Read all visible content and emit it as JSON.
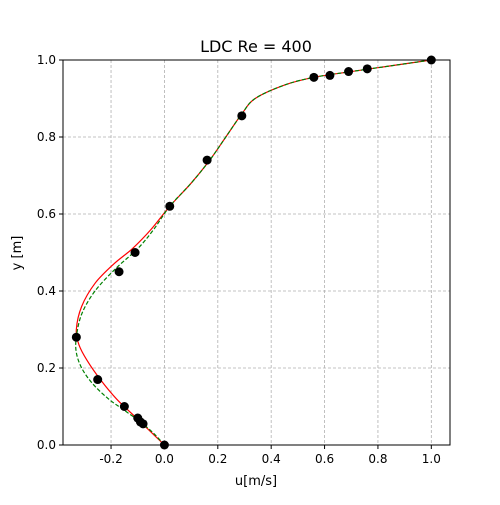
{
  "chart_data": {
    "type": "line",
    "title": "LDC Re = 400",
    "xlabel": "u[m/s]",
    "ylabel": "y [m]",
    "xlim": [
      -0.38,
      1.07
    ],
    "ylim": [
      0.0,
      1.0
    ],
    "grid": true,
    "xticks": [
      -0.2,
      0.0,
      0.2,
      0.4,
      0.6,
      0.8,
      1.0
    ],
    "yticks": [
      0.0,
      0.2,
      0.4,
      0.6,
      0.8,
      1.0
    ],
    "series": [
      {
        "style": "solid",
        "color": "#ff0000",
        "points": [
          [
            0.0,
            0.0
          ],
          [
            -0.06,
            0.04
          ],
          [
            -0.12,
            0.08
          ],
          [
            -0.18,
            0.12
          ],
          [
            -0.24,
            0.17
          ],
          [
            -0.29,
            0.22
          ],
          [
            -0.32,
            0.26
          ],
          [
            -0.33,
            0.3
          ],
          [
            -0.31,
            0.36
          ],
          [
            -0.26,
            0.42
          ],
          [
            -0.19,
            0.47
          ],
          [
            -0.12,
            0.51
          ],
          [
            -0.05,
            0.56
          ],
          [
            0.02,
            0.62
          ],
          [
            0.1,
            0.68
          ],
          [
            0.17,
            0.74
          ],
          [
            0.23,
            0.8
          ],
          [
            0.29,
            0.86
          ],
          [
            0.34,
            0.9
          ],
          [
            0.45,
            0.935
          ],
          [
            0.56,
            0.955
          ],
          [
            0.7,
            0.97
          ],
          [
            0.85,
            0.985
          ],
          [
            1.0,
            1.0
          ]
        ]
      },
      {
        "style": "dashed",
        "color": "#008000",
        "points": [
          [
            0.0,
            0.0
          ],
          [
            -0.04,
            0.03
          ],
          [
            -0.09,
            0.06
          ],
          [
            -0.15,
            0.09
          ],
          [
            -0.21,
            0.12
          ],
          [
            -0.27,
            0.16
          ],
          [
            -0.31,
            0.2
          ],
          [
            -0.33,
            0.24
          ],
          [
            -0.33,
            0.28
          ],
          [
            -0.31,
            0.34
          ],
          [
            -0.26,
            0.4
          ],
          [
            -0.18,
            0.46
          ],
          [
            -0.1,
            0.51
          ],
          [
            -0.04,
            0.56
          ],
          [
            0.02,
            0.62
          ],
          [
            0.1,
            0.68
          ],
          [
            0.17,
            0.74
          ],
          [
            0.23,
            0.8
          ],
          [
            0.29,
            0.86
          ],
          [
            0.34,
            0.9
          ],
          [
            0.45,
            0.935
          ],
          [
            0.56,
            0.955
          ],
          [
            0.7,
            0.97
          ],
          [
            0.85,
            0.985
          ],
          [
            1.0,
            1.0
          ]
        ]
      },
      {
        "style": "markers",
        "color": "#000000",
        "points": [
          [
            0.0,
            0.0
          ],
          [
            -0.08,
            0.055
          ],
          [
            -0.09,
            0.06
          ],
          [
            -0.1,
            0.07
          ],
          [
            -0.15,
            0.1
          ],
          [
            -0.25,
            0.17
          ],
          [
            -0.33,
            0.28
          ],
          [
            -0.17,
            0.45
          ],
          [
            -0.11,
            0.5
          ],
          [
            0.02,
            0.62
          ],
          [
            0.16,
            0.74
          ],
          [
            0.29,
            0.855
          ],
          [
            0.56,
            0.955
          ],
          [
            0.62,
            0.96
          ],
          [
            0.69,
            0.97
          ],
          [
            0.76,
            0.977
          ],
          [
            1.0,
            1.0
          ]
        ]
      }
    ]
  }
}
